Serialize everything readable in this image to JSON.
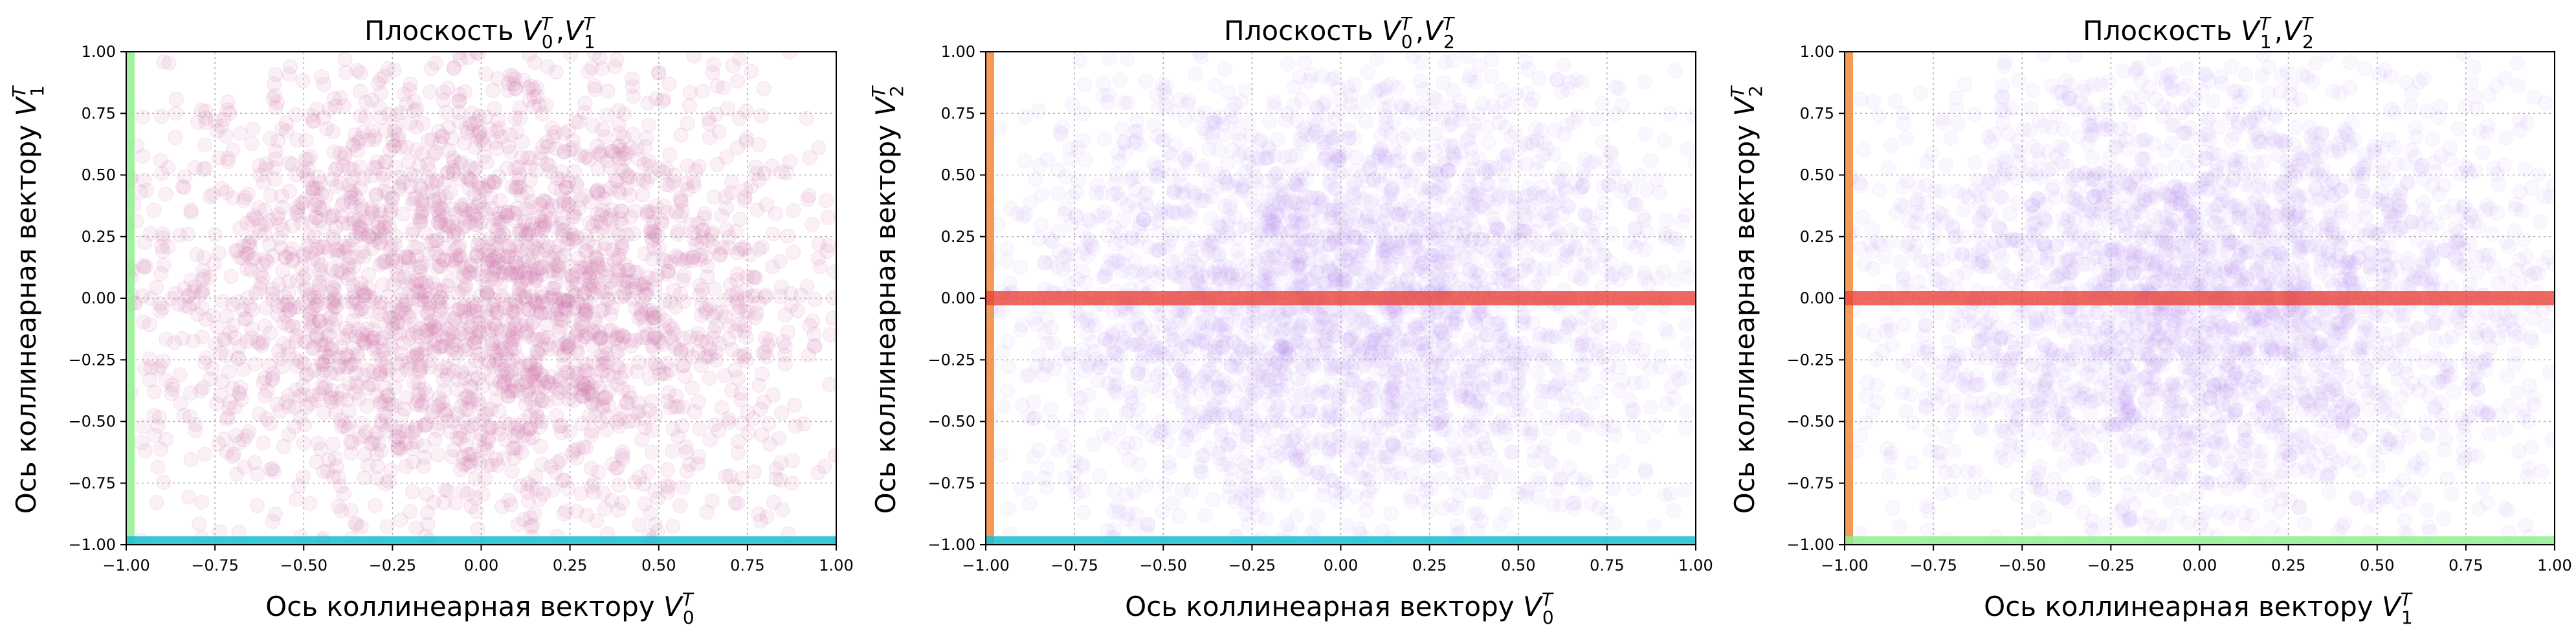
{
  "chart_data": [
    {
      "type": "scatter",
      "title_main": "Плоскость ",
      "title_vars": [
        [
          "V",
          "0",
          "T"
        ],
        [
          "V",
          "1",
          "T"
        ]
      ],
      "xlabel_main": "Ось коллинеарная вектору ",
      "xlabel_var": [
        "V",
        "0",
        "T"
      ],
      "ylabel_main": "Ось коллинеарная вектору ",
      "ylabel_var": [
        "V",
        "1",
        "T"
      ],
      "xlim": [
        -1.0,
        1.0
      ],
      "ylim": [
        -1.0,
        1.0
      ],
      "xticks": [
        "−1.00",
        "−0.75",
        "−0.50",
        "−0.25",
        "0.00",
        "0.25",
        "0.50",
        "0.75",
        "1.00"
      ],
      "yticks": [
        "−1.00",
        "−0.75",
        "−0.50",
        "−0.25",
        "0.00",
        "0.25",
        "0.50",
        "0.75",
        "1.00"
      ],
      "grid": true,
      "cloud": {
        "color": "#cc6fa8",
        "opacity": 0.1,
        "distribution": "gaussian",
        "sigma_x": 0.5,
        "sigma_y": 0.5,
        "seed": 11
      },
      "lines": [
        {
          "orientation": "vertical",
          "at": -1.0,
          "color": "#90ee90"
        },
        {
          "orientation": "horizontal",
          "at": -1.0,
          "color": "#17becf"
        }
      ]
    },
    {
      "type": "scatter",
      "title_main": "Плоскость ",
      "title_vars": [
        [
          "V",
          "0",
          "T"
        ],
        [
          "V",
          "2",
          "T"
        ]
      ],
      "xlabel_main": "Ось коллинеарная вектору ",
      "xlabel_var": [
        "V",
        "0",
        "T"
      ],
      "ylabel_main": "Ось коллинеарная вектору ",
      "ylabel_var": [
        "V",
        "2",
        "T"
      ],
      "xlim": [
        -1.0,
        1.0
      ],
      "ylim": [
        -1.0,
        1.0
      ],
      "xticks": [
        "−1.00",
        "−0.75",
        "−0.50",
        "−0.25",
        "0.00",
        "0.25",
        "0.50",
        "0.75",
        "1.00"
      ],
      "yticks": [
        "−1.00",
        "−0.75",
        "−0.50",
        "−0.25",
        "0.00",
        "0.25",
        "0.50",
        "0.75",
        "1.00"
      ],
      "grid": true,
      "cloud": {
        "color": "#b98cf5",
        "opacity": 0.07,
        "distribution": "gaussian",
        "sigma_x": 0.5,
        "sigma_y": 0.5,
        "seed": 23
      },
      "lines": [
        {
          "orientation": "vertical",
          "at": -1.0,
          "color": "#f28a3a"
        },
        {
          "orientation": "horizontal",
          "at": -1.0,
          "color": "#17becf"
        },
        {
          "orientation": "horizontal",
          "at": 0.0,
          "color": "#e8443a"
        }
      ]
    },
    {
      "type": "scatter",
      "title_main": "Плоскость ",
      "title_vars": [
        [
          "V",
          "1",
          "T"
        ],
        [
          "V",
          "2",
          "T"
        ]
      ],
      "xlabel_main": "Ось коллинеарная вектору ",
      "xlabel_var": [
        "V",
        "1",
        "T"
      ],
      "ylabel_main": "Ось коллинеарная вектору ",
      "ylabel_var": [
        "V",
        "2",
        "T"
      ],
      "xlim": [
        -1.0,
        1.0
      ],
      "ylim": [
        -1.0,
        1.0
      ],
      "xticks": [
        "−1.00",
        "−0.75",
        "−0.50",
        "−0.25",
        "0.00",
        "0.25",
        "0.50",
        "0.75",
        "1.00"
      ],
      "yticks": [
        "−1.00",
        "−0.75",
        "−0.50",
        "−0.25",
        "0.00",
        "0.25",
        "0.50",
        "0.75",
        "1.00"
      ],
      "grid": true,
      "cloud": {
        "color": "#b98cf5",
        "opacity": 0.07,
        "distribution": "gaussian",
        "sigma_x": 0.5,
        "sigma_y": 0.5,
        "seed": 37
      },
      "lines": [
        {
          "orientation": "vertical",
          "at": -1.0,
          "color": "#f28a3a"
        },
        {
          "orientation": "horizontal",
          "at": -1.0,
          "color": "#90ee90"
        },
        {
          "orientation": "horizontal",
          "at": 0.0,
          "color": "#e8443a"
        }
      ]
    }
  ]
}
